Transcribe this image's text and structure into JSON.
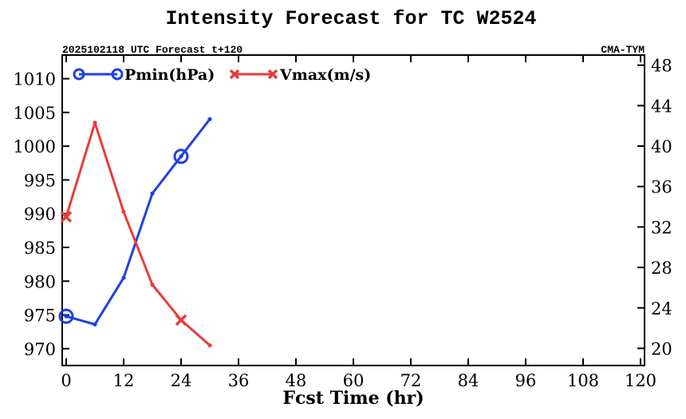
{
  "chart_data": {
    "type": "line",
    "title": "Intensity Forecast for TC W2524",
    "subtitle_left": "2025102118 UTC Forecast t+120",
    "subtitle_right": "CMA-TYM",
    "xlabel": "Fcst Time (hr)",
    "x_ticks": [
      0,
      12,
      24,
      36,
      48,
      60,
      72,
      84,
      96,
      108,
      120
    ],
    "xlim": [
      0,
      120
    ],
    "y_left": {
      "ticks": [
        970,
        975,
        980,
        985,
        990,
        995,
        1000,
        1005,
        1010
      ],
      "lim": [
        967.5,
        1013.5
      ]
    },
    "y_right": {
      "ticks": [
        20,
        24,
        28,
        32,
        36,
        40,
        44,
        48
      ],
      "lim": [
        18.3,
        49
      ]
    },
    "legend_position": "top-left",
    "series": [
      {
        "name": "Pmin(hPa)",
        "axis": "left",
        "color": "#1f3fe6",
        "marker": "circle",
        "x": [
          0,
          6,
          12,
          18,
          24,
          30
        ],
        "values": [
          974.8,
          973.6,
          980.5,
          993,
          998.5,
          1004
        ]
      },
      {
        "name": "Vmax(m/s)",
        "axis": "right",
        "color": "#ea3b3b",
        "marker": "x",
        "x": [
          0,
          6,
          12,
          18,
          24,
          30
        ],
        "values": [
          33,
          42.3,
          33.5,
          26.3,
          22.8,
          20.3
        ]
      }
    ]
  }
}
